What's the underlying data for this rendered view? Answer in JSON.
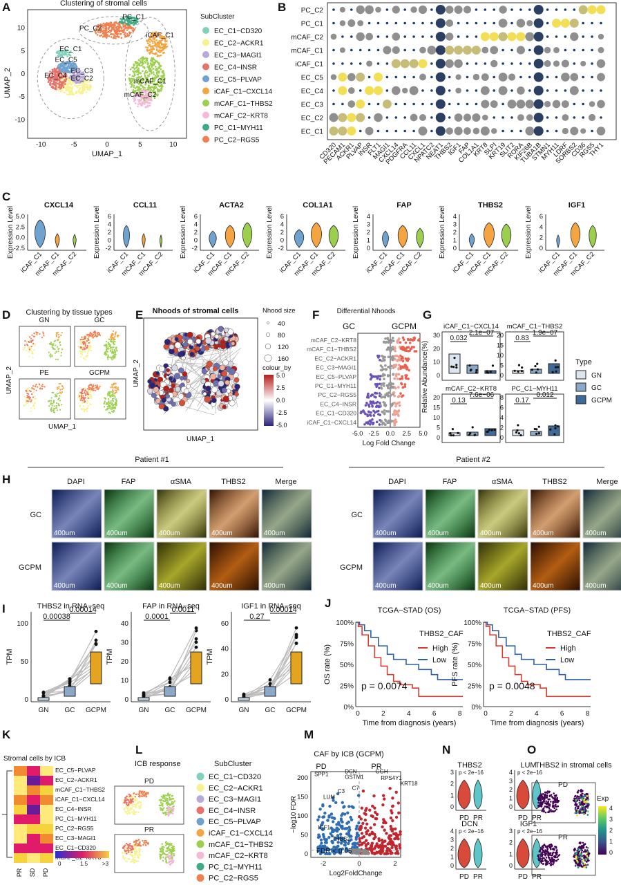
{
  "panels": [
    "A",
    "B",
    "C",
    "D",
    "E",
    "F",
    "G",
    "H",
    "I",
    "J",
    "K",
    "L",
    "M",
    "N",
    "O"
  ],
  "colors": {
    "ec_c1": "#7fd1b9",
    "ec_c2": "#f7f28f",
    "ec_c3": "#b7a9d8",
    "ec_c4": "#e8716a",
    "ec_c5": "#6fa3cf",
    "icaf": "#f5a442",
    "mcaf1": "#9ccf4e",
    "mcaf2": "#f5b9d8",
    "pc1": "#3eaa86",
    "pc2": "#f0804f"
  },
  "a": {
    "title": "Clustering of stromal cells",
    "xlabel": "UMAP_1",
    "ylabel": "UMAP_2",
    "xticks": [
      "-10",
      "-5",
      "0",
      "5",
      "10"
    ],
    "yticks": [
      "10",
      "5",
      "0",
      "-5",
      "-10"
    ],
    "cluster_labels": [
      "PC_C1",
      "PC_C2",
      "iCAF_C1",
      "EC_C1",
      "EC_C5",
      "EC_C3",
      "EC_C4",
      "EC_C2",
      "mCAF_C1",
      "mCAF_C2"
    ],
    "legend_title": "SubCluster",
    "legend": [
      "EC_C1−CD320",
      "EC_C2−ACKR1",
      "EC_C3−MAGI1",
      "EC_C4−INSR",
      "EC_C5−PLVAP",
      "iCAF_C1−CXCL14",
      "mCAF_C1−THBS2",
      "mCAF_C2−KRT8",
      "PC_C1−MYH11",
      "PC_C2−RGS5"
    ]
  },
  "b": {
    "rows": [
      "PC_C2",
      "PC_C1",
      "mCAF_C2",
      "mCAF_C1",
      "iCAF_C1",
      "EC_C5",
      "EC_C4",
      "EC_C3",
      "EC_C2",
      "EC_C1"
    ],
    "cols": [
      "CD320",
      "PECAM1",
      "ACKR1",
      "PLVAP",
      "INSR",
      "FLT1",
      "MAGI1",
      "CXCL14",
      "PDGFRA",
      "CCL11",
      "CXCL1",
      "NPATC2",
      "NEAT1",
      "THBS2",
      "IGF1",
      "FAP",
      "COL1A1",
      "KRT8",
      "SLPI",
      "KRT19",
      "SLIT2",
      "RORA",
      "KIF26B",
      "TUBA1B",
      "STMN1",
      "MYH11",
      "LDRF",
      "SORBS2",
      "CD36",
      "RGS5",
      "THY1"
    ]
  },
  "c": {
    "ylabel": "Expression Level",
    "genes": [
      "CXCL14",
      "CCL11",
      "ACTA2",
      "COL1A1",
      "FAP",
      "THBS2",
      "IGF1"
    ],
    "groups": [
      "iCAF_C1",
      "mCAF_C1",
      "mCAF_C2"
    ],
    "yticks": [
      [
        "5.0",
        "2.5",
        "0.0",
        "-2.5"
      ],
      [
        "6",
        "4",
        "2",
        "0",
        "-2"
      ],
      [
        "6",
        "4",
        "2",
        "0",
        "-2"
      ],
      [
        "6",
        "4",
        "2",
        "0",
        "-2"
      ],
      [
        "4",
        "3",
        "2",
        "1",
        "0"
      ],
      [
        "4",
        "3",
        "2",
        "1",
        "0"
      ],
      [
        "6",
        "4",
        "2",
        "0"
      ]
    ]
  },
  "d": {
    "title": "Clustering by tissue types",
    "facets": [
      "GN",
      "GC",
      "PE",
      "GCPM"
    ],
    "xlabel": "UMAP_1",
    "ylabel": "UMAP_2"
  },
  "e": {
    "title": "Nhoods of stromal cells",
    "xlabel": "UMAP_1",
    "ylabel": "UMAP_2",
    "size_title": "Nhood size",
    "sizes": [
      "40",
      "80",
      "120",
      "160"
    ],
    "colour_title": "colour_by",
    "colour_ticks": [
      "5.0",
      "2.5",
      "0.0",
      "-2.5",
      "-5.0"
    ]
  },
  "f": {
    "title": "Differential Nhoods",
    "left": "GC",
    "right": "GCPM",
    "xlabel": "Log Fold Change",
    "xticks": [
      "-5.0",
      "-2.5",
      "0.0",
      "2.5",
      "5.0"
    ],
    "rows": [
      "mCAF_C2−KRT8",
      "mCAF_C1−THBS2",
      "EC_C2−ACKR1",
      "EC_C3−MAGI1",
      "EC_C5−PLVAP",
      "PC_C1−MYH11",
      "PC_C2−RGS5",
      "EC_C4−INSR",
      "EC_C1−CD320",
      "iCAF_C1−CXCL14"
    ]
  },
  "g": {
    "ylabel": "Relative Abundance(%)",
    "legend_title": "Type",
    "legend": [
      "GN",
      "GC",
      "GCPM"
    ],
    "facets": [
      {
        "title": "iCAF_C1−CXCL14",
        "p1": "0.032",
        "p2": "2.1e−07",
        "yticks": [
          "30",
          "20",
          "10",
          "0"
        ]
      },
      {
        "title": "mCAF_C1−THBS2",
        "p1": "0.83",
        "p2": "1.9e−07",
        "yticks": [
          "20",
          "15",
          "10",
          "5",
          "0"
        ]
      },
      {
        "title": "mCAF_C2−KRT8",
        "p1": "0.13",
        "p2": "7.6e−06",
        "yticks": [
          "20",
          "15",
          "10",
          "5",
          "0"
        ]
      },
      {
        "title": "PC_C1−MYH11",
        "p1": "0.17",
        "p2": "0.012",
        "yticks": [
          "8",
          "6",
          "4",
          "2",
          "0"
        ]
      }
    ]
  },
  "h": {
    "patients": [
      "Patient #1",
      "Patient #2"
    ],
    "channels": [
      "DAPI",
      "FAP",
      "αSMA",
      "THBS2",
      "Merge"
    ],
    "rows": [
      "GC",
      "GCPM"
    ],
    "scale": "400um"
  },
  "i": {
    "ylabel": "TPM",
    "groups": [
      "GN",
      "GC",
      "GCPM"
    ],
    "plots": [
      {
        "title": "THBS2 in RNA−seq",
        "p1": "0.00038",
        "p2": "0.00014",
        "yticks": [
          "100",
          "50",
          "0"
        ]
      },
      {
        "title": "FAP in RNA−seq",
        "p1": "0.0001",
        "p2": "0.0011",
        "yticks": [
          "40",
          "30",
          "20",
          "10",
          "0"
        ]
      },
      {
        "title": "IGF1 in RNA−seq",
        "p1": "0.27",
        "p2": "0.00014",
        "yticks": [
          "60",
          "40",
          "20",
          "0"
        ]
      }
    ]
  },
  "j": {
    "plots": [
      {
        "title": "TCGA−STAD (OS)",
        "ylabel": "OS rate (%)",
        "p": "p = 0.0074"
      },
      {
        "title": "TCGA−STAD (PFS)",
        "ylabel": "PFS rate (%)",
        "p": "p = 0.0048"
      }
    ],
    "xlabel": "Time from diagnosis (years)",
    "legend_title": "THBS2_CAF",
    "legend": [
      "High",
      "Low"
    ],
    "yticks": [
      "100%",
      "75%",
      "50%",
      "25%",
      "0%"
    ],
    "xticks": [
      "0",
      "2",
      "4",
      "6",
      "8"
    ],
    "high_color": "#d63b2f",
    "low_color": "#2e5fa6"
  },
  "k": {
    "title": "Stromal cells by ICB",
    "rows": [
      "EC_C5−PLVAP",
      "EC_C2−ACKR1",
      "mCAF_C1−THBS2",
      "iCAF_C1−CXCL14",
      "EC_C4−INSR",
      "PC_C1−MYH11",
      "PC_C2−RGS5",
      "EC_C3−MAGI1",
      "EC_C1−CD320",
      "mCAF_C2−KRT8"
    ],
    "cols": [
      "PR",
      "SD",
      "PD"
    ],
    "scale_ticks": [
      "0",
      "1.5",
      ">3"
    ]
  },
  "l": {
    "title": "ICB response",
    "facets": [
      "PD",
      "PR"
    ],
    "legend_title": "SubCluster",
    "legend": [
      "EC_C1−CD320",
      "EC_C2−ACKR1",
      "EC_C3−MAGI1",
      "EC_C4−INSR",
      "EC_C5−PLVAP",
      "iCAF_C1−CXCL14",
      "mCAF_C1−THBS2",
      "mCAF_C2−KRT8",
      "PC_C1−MYH11",
      "PC_C2−RGS5"
    ]
  },
  "m": {
    "title": "CAF by ICB (GCPM)",
    "left": "PD",
    "right": "PR",
    "xlabel": "Log2FoldChange",
    "ylabel": "−log10 FDR",
    "fdr": "FDR < 0.05",
    "yticks": [
      "200",
      "150",
      "100",
      "50",
      "0"
    ],
    "xticks": [
      "-2",
      "0",
      "2"
    ],
    "genes": [
      "SPP1",
      "DCN",
      "GSTM1",
      "C3",
      "C7",
      "LUM",
      "IGF1",
      "THBS2",
      "GGH",
      "RPS4Y1",
      "KRT18"
    ]
  },
  "n": {
    "genes": [
      "THBS2",
      "LUM",
      "DCN",
      "IGF1"
    ],
    "groups": [
      "PD",
      "PR"
    ],
    "p": "p < 2e−16",
    "yticks": [
      [
        "3",
        "2",
        "1",
        "0"
      ],
      [
        "4",
        "3",
        "2",
        "1",
        "0"
      ],
      [
        "4",
        "3",
        "2",
        "1",
        "0"
      ],
      [
        "3",
        "2",
        "1",
        "0"
      ]
    ]
  },
  "o": {
    "title": "THBS2 in stromal cells",
    "facets": [
      "PD",
      "PR"
    ],
    "legend_title": "Exp",
    "ticks": [
      "4",
      "3",
      "2",
      "1",
      "0"
    ]
  }
}
